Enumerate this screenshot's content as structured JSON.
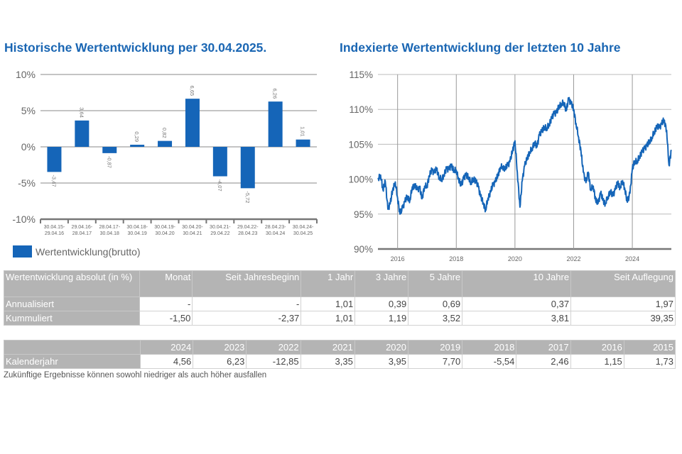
{
  "titles": {
    "left": "Historische Wertentwicklung per 30.04.2025.",
    "right": "Indexierte Wertentwicklung der letzten 10 Jahre"
  },
  "legend": {
    "label": "Wertentwicklung(brutto)",
    "color": "#1565b8"
  },
  "chart_data": [
    {
      "type": "bar",
      "title": "Historische Wertentwicklung per 30.04.2025.",
      "categories": [
        [
          "30.04.15-",
          "29.04.16"
        ],
        [
          "29.04.16-",
          "28.04.17"
        ],
        [
          "28.04.17-",
          "30.04.18"
        ],
        [
          "30.04.18-",
          "30.04.19"
        ],
        [
          "30.04.19-",
          "30.04.20"
        ],
        [
          "30.04.20-",
          "30.04.21"
        ],
        [
          "30.04.21-",
          "29.04.22"
        ],
        [
          "29.04.22-",
          "28.04.23"
        ],
        [
          "28.04.23-",
          "30.04.24"
        ],
        [
          "30.04.24-",
          "30.04.25"
        ]
      ],
      "series": [
        {
          "name": "Wertentwicklung(brutto)",
          "values": [
            -3.47,
            3.64,
            -0.87,
            0.29,
            0.82,
            6.65,
            -4.07,
            -5.72,
            6.26,
            1.01
          ],
          "labels": [
            "-3,47",
            "3,64",
            "-0,87",
            "0,29",
            "0,82",
            "6,65",
            "-4,07",
            "-5,72",
            "6,26",
            "1,01"
          ]
        }
      ],
      "yticks": [
        10,
        5,
        0,
        -5,
        -10
      ],
      "ytick_labels": [
        "10%",
        "5%",
        "0%",
        "-5%",
        "-10%"
      ],
      "ylim": [
        -10,
        10
      ],
      "grid": true,
      "legend": "bottom-left",
      "color": "#1565b8"
    },
    {
      "type": "line",
      "title": "Indexierte Wertentwicklung der letzten 10 Jahre",
      "xlim": [
        2015.33,
        2025.33
      ],
      "ylim": [
        90,
        115
      ],
      "xticks": [
        2016,
        2018,
        2020,
        2022,
        2024
      ],
      "xtick_labels": [
        "2016",
        "2018",
        "2020",
        "2022",
        "2024"
      ],
      "yticks": [
        115,
        110,
        105,
        100,
        95,
        90
      ],
      "ytick_labels": [
        "115%",
        "110%",
        "105%",
        "100%",
        "95%",
        "90%"
      ],
      "grid": true,
      "color": "#1565b8",
      "series": [
        {
          "name": "Index",
          "x": [
            2015.33,
            2015.42,
            2015.5,
            2015.58,
            2015.67,
            2015.75,
            2015.83,
            2015.92,
            2016.0,
            2016.08,
            2016.17,
            2016.25,
            2016.33,
            2016.42,
            2016.5,
            2016.58,
            2016.67,
            2016.75,
            2016.83,
            2016.92,
            2017.0,
            2017.08,
            2017.17,
            2017.25,
            2017.33,
            2017.42,
            2017.5,
            2017.58,
            2017.67,
            2017.75,
            2017.83,
            2017.92,
            2018.0,
            2018.08,
            2018.17,
            2018.25,
            2018.33,
            2018.42,
            2018.5,
            2018.58,
            2018.67,
            2018.75,
            2018.83,
            2018.92,
            2019.0,
            2019.08,
            2019.17,
            2019.25,
            2019.33,
            2019.42,
            2019.5,
            2019.58,
            2019.67,
            2019.75,
            2019.83,
            2019.92,
            2020.0,
            2020.08,
            2020.17,
            2020.25,
            2020.33,
            2020.42,
            2020.5,
            2020.58,
            2020.67,
            2020.75,
            2020.83,
            2020.92,
            2021.0,
            2021.08,
            2021.17,
            2021.25,
            2021.33,
            2021.42,
            2021.5,
            2021.58,
            2021.67,
            2021.75,
            2021.83,
            2021.92,
            2022.0,
            2022.08,
            2022.17,
            2022.25,
            2022.33,
            2022.42,
            2022.5,
            2022.58,
            2022.67,
            2022.75,
            2022.83,
            2022.92,
            2023.0,
            2023.08,
            2023.17,
            2023.25,
            2023.33,
            2023.42,
            2023.5,
            2023.58,
            2023.67,
            2023.75,
            2023.83,
            2023.92,
            2024.0,
            2024.08,
            2024.17,
            2024.25,
            2024.33,
            2024.42,
            2024.5,
            2024.58,
            2024.67,
            2024.75,
            2024.83,
            2024.92,
            2025.0,
            2025.08,
            2025.17,
            2025.25,
            2025.33
          ],
          "y": [
            100.0,
            100.6,
            98.5,
            99.7,
            95.7,
            96.5,
            98.5,
            99.6,
            97.3,
            95.0,
            95.9,
            96.8,
            97.5,
            97.0,
            98.9,
            99.1,
            98.5,
            98.8,
            97.2,
            99.0,
            99.0,
            100.5,
            101.3,
            100.9,
            101.5,
            100.2,
            100.0,
            100.6,
            101.5,
            101.4,
            101.9,
            101.3,
            101.3,
            100.0,
            99.1,
            100.1,
            100.6,
            100.3,
            99.5,
            100.1,
            99.7,
            98.9,
            97.5,
            96.6,
            95.6,
            97.3,
            98.2,
            99.2,
            99.6,
            100.6,
            101.7,
            101.8,
            101.5,
            102.0,
            102.5,
            104.1,
            105.5,
            101.0,
            96.0,
            99.8,
            101.9,
            103.0,
            103.9,
            104.4,
            105.3,
            104.6,
            106.3,
            106.9,
            107.5,
            107.3,
            107.9,
            108.7,
            109.4,
            109.5,
            110.5,
            110.8,
            111.0,
            109.8,
            111.5,
            110.8,
            110.0,
            108.0,
            106.0,
            104.0,
            101.0,
            99.5,
            101.0,
            98.5,
            99.0,
            97.0,
            96.5,
            98.0,
            97.0,
            96.5,
            97.5,
            98.3,
            97.6,
            98.5,
            99.5,
            98.8,
            99.8,
            98.5,
            96.7,
            98.0,
            101.5,
            102.6,
            102.6,
            103.3,
            103.9,
            104.4,
            104.8,
            105.4,
            106.0,
            106.8,
            107.5,
            107.4,
            107.9,
            108.5,
            107.0,
            102.0,
            104.2
          ]
        }
      ]
    }
  ],
  "table_periods": {
    "header_label": "Wertentwicklung absolut (in %)",
    "columns": [
      "Monat",
      "Seit Jahresbeginn",
      "1 Jahr",
      "3 Jahre",
      "5 Jahre",
      "10 Jahre",
      "Seit Auflegung"
    ],
    "rows": [
      {
        "label": "Annualisiert",
        "values": [
          "-",
          "-",
          "1,01",
          "0,39",
          "0,69",
          "0,37",
          "1,97"
        ]
      },
      {
        "label": "Kummuliert",
        "values": [
          "-1,50",
          "-2,37",
          "1,01",
          "1,19",
          "3,52",
          "3,81",
          "39,35"
        ]
      }
    ]
  },
  "table_years": {
    "columns": [
      "2024",
      "2023",
      "2022",
      "2021",
      "2020",
      "2019",
      "2018",
      "2017",
      "2016",
      "2015"
    ],
    "row": {
      "label": "Kalenderjahr",
      "values": [
        "4,56",
        "6,23",
        "-12,85",
        "3,35",
        "3,95",
        "7,70",
        "-5,54",
        "2,46",
        "1,15",
        "1,73"
      ]
    }
  },
  "disclaimer": "Zukünftige Ergebnisse können sowohl niedriger als auch höher ausfallen"
}
